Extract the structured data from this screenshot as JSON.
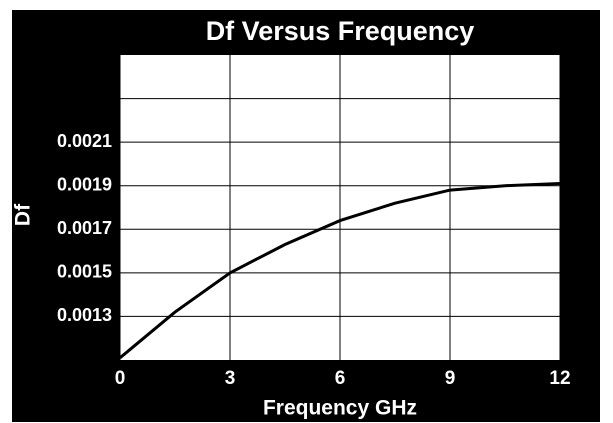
{
  "chart_data": {
    "type": "line",
    "title": "Df Versus Frequency",
    "x_label": "Frequency GHz",
    "y_label": "Df",
    "x": [
      0,
      1.5,
      3,
      4.5,
      6,
      7.5,
      9,
      10.5,
      12
    ],
    "series": [
      {
        "name": "Df",
        "color": "#000000",
        "values": [
          0.00111,
          0.00132,
          0.0015,
          0.00163,
          0.00174,
          0.00182,
          0.00188,
          0.0019,
          0.00191
        ]
      }
    ],
    "xlim": [
      0,
      12
    ],
    "xticks": [
      0,
      3,
      6,
      9,
      12
    ],
    "ylim": [
      0.0011,
      0.0025
    ],
    "yticks": [
      0.0013,
      0.0015,
      0.0017,
      0.0019,
      0.0021
    ],
    "ygrid_unlabeled": [
      0.0023
    ],
    "grid": true
  }
}
